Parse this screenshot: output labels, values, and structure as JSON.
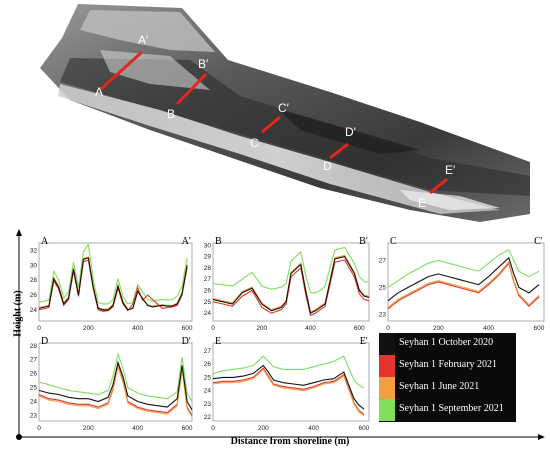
{
  "map": {
    "labels": [
      {
        "start": "A",
        "end": "A′"
      },
      {
        "start": "B",
        "end": "B′"
      },
      {
        "start": "C",
        "end": "C′"
      },
      {
        "start": "D",
        "end": "D′"
      },
      {
        "start": "E",
        "end": "E′"
      }
    ],
    "profile_line_color": "#e3261f"
  },
  "axes": {
    "y_title": "Height (m)",
    "x_title": "Distance from shoreline (m)"
  },
  "legend": [
    {
      "label": "Seyhan 1 October 2020",
      "color": "#111111"
    },
    {
      "label": "Seyhan 1 February 2021",
      "color": "#e3342f"
    },
    {
      "label": "Seyhan 1 June 2021",
      "color": "#f0a040"
    },
    {
      "label": "Seyhan 1 September 2021",
      "color": "#7ee05a"
    }
  ],
  "chart_data": [
    {
      "type": "line",
      "panel": "A",
      "start_label": "A",
      "end_label": "A′",
      "xlim": [
        0,
        620
      ],
      "ylim": [
        22.5,
        33
      ],
      "x_ticks": [
        0,
        200,
        400,
        600
      ],
      "y_ticks": [
        24,
        26,
        28,
        30,
        32
      ],
      "x": [
        0,
        40,
        60,
        80,
        100,
        120,
        140,
        160,
        180,
        200,
        220,
        240,
        260,
        280,
        300,
        320,
        340,
        360,
        380,
        400,
        420,
        440,
        460,
        480,
        500,
        520,
        540,
        560,
        580,
        600
      ],
      "series": [
        {
          "legend_index": 0,
          "values": [
            24.2,
            24.5,
            28.2,
            27.0,
            24.8,
            25.6,
            29.5,
            26.0,
            30.8,
            31.0,
            27.0,
            24.2,
            24.0,
            24.0,
            24.6,
            27.2,
            25.0,
            24.0,
            24.2,
            26.5,
            25.5,
            24.6,
            24.4,
            24.5,
            24.6,
            24.5,
            24.5,
            24.8,
            26.2,
            30.0
          ]
        },
        {
          "legend_index": 1,
          "values": [
            24.0,
            24.3,
            27.9,
            26.8,
            24.6,
            25.4,
            29.2,
            25.8,
            30.5,
            30.7,
            26.8,
            24.0,
            23.8,
            23.9,
            24.4,
            26.9,
            24.8,
            23.9,
            24.8,
            27.0,
            25.3,
            26.0,
            25.4,
            24.8,
            24.2,
            24.3,
            24.4,
            24.6,
            26.0,
            29.7
          ]
        },
        {
          "legend_index": 2,
          "values": [
            24.3,
            24.6,
            28.3,
            27.2,
            24.9,
            25.7,
            29.6,
            26.1,
            30.9,
            31.1,
            27.1,
            24.3,
            24.1,
            24.1,
            24.7,
            27.3,
            25.1,
            24.1,
            24.3,
            26.6,
            25.6,
            24.7,
            24.5,
            24.6,
            24.7,
            24.6,
            24.6,
            24.9,
            26.3,
            30.1
          ]
        },
        {
          "legend_index": 3,
          "values": [
            25.0,
            25.3,
            29.2,
            28.0,
            25.6,
            26.4,
            30.4,
            27.0,
            31.8,
            32.8,
            28.0,
            25.0,
            24.8,
            24.8,
            25.4,
            28.2,
            25.8,
            24.8,
            25.0,
            27.4,
            26.4,
            25.4,
            25.2,
            25.3,
            25.4,
            25.3,
            25.4,
            25.8,
            27.2,
            31.0
          ]
        }
      ]
    },
    {
      "type": "line",
      "panel": "B",
      "start_label": "B",
      "end_label": "B′",
      "xlim": [
        0,
        640
      ],
      "ylim": [
        23.3,
        30.2
      ],
      "x_ticks": [
        0,
        200,
        400,
        600
      ],
      "y_ticks": [
        24,
        25,
        26,
        27,
        28,
        29,
        30
      ],
      "x": [
        0,
        40,
        80,
        120,
        160,
        200,
        240,
        280,
        300,
        320,
        360,
        380,
        400,
        420,
        440,
        460,
        500,
        540,
        580,
        600,
        620,
        640
      ],
      "series": [
        {
          "legend_index": 0,
          "values": [
            25.2,
            25.0,
            24.8,
            25.8,
            26.2,
            24.8,
            24.2,
            24.5,
            25.0,
            27.5,
            28.3,
            26.0,
            24.0,
            24.2,
            24.5,
            24.8,
            28.8,
            29.0,
            27.5,
            26.0,
            25.5,
            25.4
          ]
        },
        {
          "legend_index": 1,
          "values": [
            25.0,
            24.8,
            24.6,
            25.5,
            26.0,
            24.5,
            24.0,
            24.3,
            24.8,
            27.2,
            28.0,
            25.7,
            23.8,
            24.0,
            24.3,
            24.6,
            28.5,
            28.7,
            27.2,
            25.7,
            25.2,
            25.1
          ]
        },
        {
          "legend_index": 2,
          "values": [
            25.3,
            25.1,
            24.9,
            25.9,
            26.3,
            24.9,
            24.3,
            24.6,
            25.1,
            27.6,
            28.4,
            26.1,
            24.1,
            24.3,
            24.6,
            24.9,
            28.9,
            29.1,
            27.6,
            26.1,
            25.6,
            25.5
          ]
        },
        {
          "legend_index": 3,
          "values": [
            26.6,
            26.5,
            26.4,
            27.0,
            27.6,
            26.4,
            26.1,
            26.3,
            26.6,
            28.6,
            29.4,
            27.4,
            25.8,
            25.8,
            26.0,
            26.4,
            29.6,
            29.8,
            28.4,
            27.2,
            26.8,
            26.7
          ]
        }
      ]
    },
    {
      "type": "line",
      "panel": "C",
      "start_label": "C",
      "end_label": "C′",
      "xlim": [
        0,
        620
      ],
      "ylim": [
        22.5,
        28.3
      ],
      "x_ticks": [
        0,
        200,
        400,
        600
      ],
      "y_ticks": [
        23,
        25,
        27
      ],
      "x": [
        0,
        40,
        80,
        120,
        160,
        200,
        240,
        280,
        320,
        360,
        400,
        440,
        480,
        500,
        520,
        560,
        600
      ],
      "series": [
        {
          "legend_index": 0,
          "values": [
            24.0,
            24.6,
            25.0,
            25.4,
            25.8,
            26.0,
            25.8,
            25.6,
            25.4,
            25.2,
            25.8,
            26.5,
            27.2,
            26.0,
            25.0,
            24.6,
            25.2
          ]
        },
        {
          "legend_index": 1,
          "values": [
            23.4,
            24.0,
            24.4,
            24.8,
            25.2,
            25.4,
            25.2,
            25.0,
            24.8,
            24.6,
            25.2,
            25.9,
            26.8,
            25.4,
            24.4,
            23.6,
            24.3
          ]
        },
        {
          "legend_index": 2,
          "values": [
            23.5,
            24.1,
            24.5,
            24.9,
            25.3,
            25.5,
            25.3,
            25.1,
            24.9,
            24.7,
            25.3,
            26.0,
            26.9,
            25.5,
            24.5,
            23.7,
            24.4
          ]
        },
        {
          "legend_index": 3,
          "values": [
            25.0,
            25.5,
            26.0,
            26.4,
            26.8,
            27.0,
            26.8,
            26.6,
            26.4,
            26.2,
            26.8,
            27.4,
            27.8,
            27.0,
            26.2,
            25.8,
            26.2
          ]
        }
      ]
    },
    {
      "type": "line",
      "panel": "D",
      "start_label": "D",
      "end_label": "D′",
      "xlim": [
        0,
        620
      ],
      "ylim": [
        22.6,
        28.2
      ],
      "x_ticks": [
        0,
        200,
        400,
        600
      ],
      "y_ticks": [
        23,
        24,
        25,
        26,
        27,
        28
      ],
      "x": [
        0,
        40,
        80,
        120,
        160,
        200,
        240,
        280,
        300,
        320,
        340,
        360,
        400,
        440,
        480,
        520,
        560,
        580,
        600,
        620
      ],
      "series": [
        {
          "legend_index": 0,
          "values": [
            24.8,
            24.6,
            24.5,
            24.3,
            24.2,
            24.2,
            24.0,
            24.3,
            25.2,
            26.8,
            25.8,
            24.4,
            24.0,
            23.8,
            23.7,
            23.6,
            24.2,
            26.6,
            24.0,
            23.4
          ]
        },
        {
          "legend_index": 1,
          "values": [
            24.5,
            24.2,
            24.1,
            23.9,
            23.8,
            23.8,
            23.6,
            23.9,
            24.9,
            26.6,
            25.5,
            24.0,
            23.6,
            23.4,
            23.3,
            23.2,
            23.8,
            26.4,
            23.6,
            23.0
          ]
        },
        {
          "legend_index": 2,
          "values": [
            24.4,
            24.1,
            24.0,
            23.8,
            23.7,
            23.7,
            23.5,
            23.8,
            24.8,
            26.5,
            25.4,
            23.9,
            23.5,
            23.3,
            23.2,
            23.1,
            23.7,
            26.3,
            23.5,
            22.9
          ]
        },
        {
          "legend_index": 3,
          "values": [
            25.4,
            25.2,
            25.0,
            24.8,
            24.7,
            24.6,
            24.5,
            24.8,
            25.8,
            27.4,
            26.4,
            25.0,
            24.6,
            24.4,
            24.3,
            24.2,
            24.7,
            27.2,
            24.6,
            24.0
          ]
        }
      ]
    },
    {
      "type": "line",
      "panel": "E",
      "start_label": "E",
      "end_label": "E′",
      "xlim": [
        0,
        620
      ],
      "ylim": [
        21.7,
        27.6
      ],
      "x_ticks": [
        0,
        200,
        400,
        600
      ],
      "y_ticks": [
        22,
        23,
        24,
        25,
        26,
        27
      ],
      "x": [
        0,
        40,
        80,
        120,
        160,
        200,
        220,
        240,
        280,
        320,
        360,
        400,
        440,
        480,
        520,
        560,
        580,
        600
      ],
      "series": [
        {
          "legend_index": 0,
          "values": [
            24.9,
            25.0,
            25.0,
            25.1,
            25.3,
            25.9,
            25.4,
            24.8,
            24.6,
            24.5,
            24.4,
            24.6,
            24.8,
            24.9,
            25.4,
            23.4,
            22.9,
            22.6
          ]
        },
        {
          "legend_index": 1,
          "values": [
            24.6,
            24.7,
            24.7,
            24.8,
            25.0,
            25.7,
            25.1,
            24.5,
            24.3,
            24.2,
            24.1,
            24.3,
            24.6,
            24.7,
            25.2,
            23.1,
            22.5,
            22.2
          ]
        },
        {
          "legend_index": 2,
          "values": [
            24.5,
            24.6,
            24.6,
            24.7,
            24.9,
            25.6,
            25.0,
            24.4,
            24.2,
            24.1,
            24.0,
            24.2,
            24.5,
            24.6,
            25.1,
            23.0,
            22.4,
            22.1
          ]
        },
        {
          "legend_index": 3,
          "values": [
            25.3,
            25.5,
            25.6,
            25.7,
            25.9,
            26.6,
            26.2,
            25.8,
            25.6,
            25.6,
            25.6,
            25.8,
            26.0,
            26.2,
            26.6,
            24.8,
            24.4,
            24.2
          ]
        }
      ]
    }
  ]
}
